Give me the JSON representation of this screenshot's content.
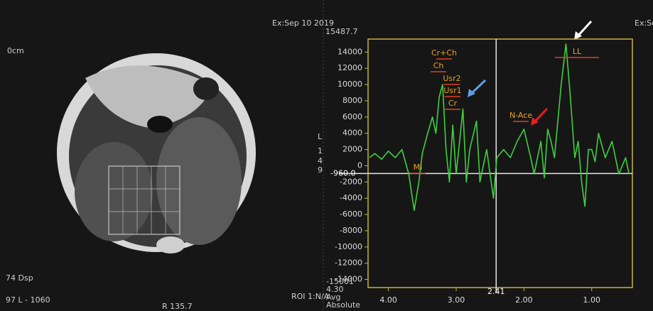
{
  "chart_data": {
    "type": "line",
    "x": [
      4.28,
      4.2,
      4.1,
      4.0,
      3.9,
      3.8,
      3.7,
      3.62,
      3.55,
      3.5,
      3.42,
      3.35,
      3.3,
      3.25,
      3.2,
      3.15,
      3.1,
      3.05,
      3.0,
      2.95,
      2.9,
      2.85,
      2.8,
      2.7,
      2.65,
      2.55,
      2.45,
      2.4,
      2.3,
      2.2,
      2.1,
      2.0,
      1.9,
      1.85,
      1.75,
      1.7,
      1.65,
      1.6,
      1.55,
      1.45,
      1.38,
      1.32,
      1.25,
      1.2,
      1.15,
      1.1,
      1.05,
      1.0,
      0.95,
      0.9,
      0.8,
      0.7,
      0.6,
      0.5,
      0.45
    ],
    "series": [
      {
        "color": "#3fd03f",
        "values": [
          1000,
          1500,
          800,
          1800,
          1000,
          2000,
          -1000,
          -5500,
          -2000,
          1500,
          4000,
          6000,
          4000,
          8500,
          10000,
          2000,
          -2000,
          5000,
          -1000,
          3000,
          7000,
          -2000,
          2000,
          5500,
          -2000,
          2000,
          -4000,
          1000,
          2000,
          1000,
          3000,
          4500,
          1000,
          -1000,
          3000,
          -1500,
          4500,
          3000,
          1000,
          10000,
          15000,
          9000,
          1000,
          3000,
          -2000,
          -5000,
          2000,
          2000,
          500,
          4000,
          1000,
          3000,
          -1000,
          1000,
          -1000
        ]
      }
    ],
    "xlim": [
      4.3,
      0.4
    ],
    "ylim": [
      -15000,
      15600
    ],
    "xticks": [
      {
        "value": 4,
        "label": "4.00"
      },
      {
        "value": 3,
        "label": "3.00"
      },
      {
        "value": 2,
        "label": "2.00"
      },
      {
        "value": 1,
        "label": "1.00"
      }
    ],
    "yticks": [
      -14000,
      -12000,
      -10000,
      -8000,
      -6000,
      -4000,
      -2000,
      0,
      2000,
      4000,
      6000,
      8000,
      10000,
      12000,
      14000
    ],
    "axis_color": "#c8b43a",
    "cursor": {
      "x": {
        "value": 2.41,
        "label": "2.41"
      },
      "y": {
        "value": -960,
        "label": "-960.0"
      }
    },
    "annotations": [
      "Cr+Ch",
      "Ch",
      "Usr2",
      "Usr1",
      "Cr",
      "N-Ace",
      "LL",
      "MI"
    ]
  },
  "overlay": {
    "texts": [
      "Ex:Sep 10 2019",
      "Ex:Se",
      "15487.7",
      "0cm",
      "L",
      "1",
      "4",
      "9",
      "74 Dsp",
      "97 L - 1060",
      "ROI 1:N/A",
      "-15001",
      "4.30",
      "Avg",
      "Absolute",
      "R 135.7"
    ]
  }
}
